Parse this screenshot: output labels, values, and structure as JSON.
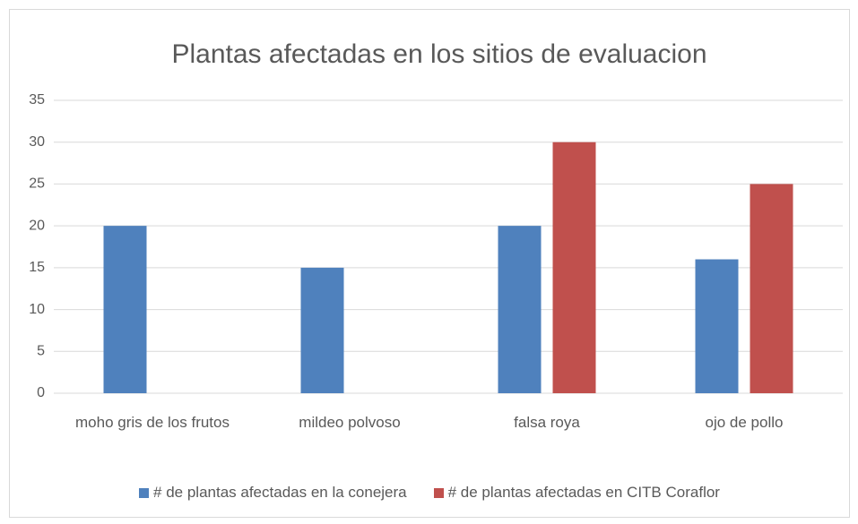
{
  "chart_data": {
    "type": "bar",
    "title": "Plantas afectadas en los sitios de evaluacion",
    "categories": [
      "moho gris de los frutos",
      "mildeo polvoso",
      "falsa roya",
      "ojo de pollo"
    ],
    "series": [
      {
        "name": "# de plantas afectadas en la conejera",
        "color": "#4f81bd",
        "values": [
          20,
          15,
          20,
          16
        ]
      },
      {
        "name": "# de plantas afectadas en CITB Coraflor",
        "color": "#c0504d",
        "values": [
          null,
          null,
          30,
          25
        ]
      }
    ],
    "ylim": [
      0,
      35
    ],
    "yticks": [
      0,
      5,
      10,
      15,
      20,
      25,
      30,
      35
    ],
    "grid": true,
    "legend": "bottom"
  }
}
